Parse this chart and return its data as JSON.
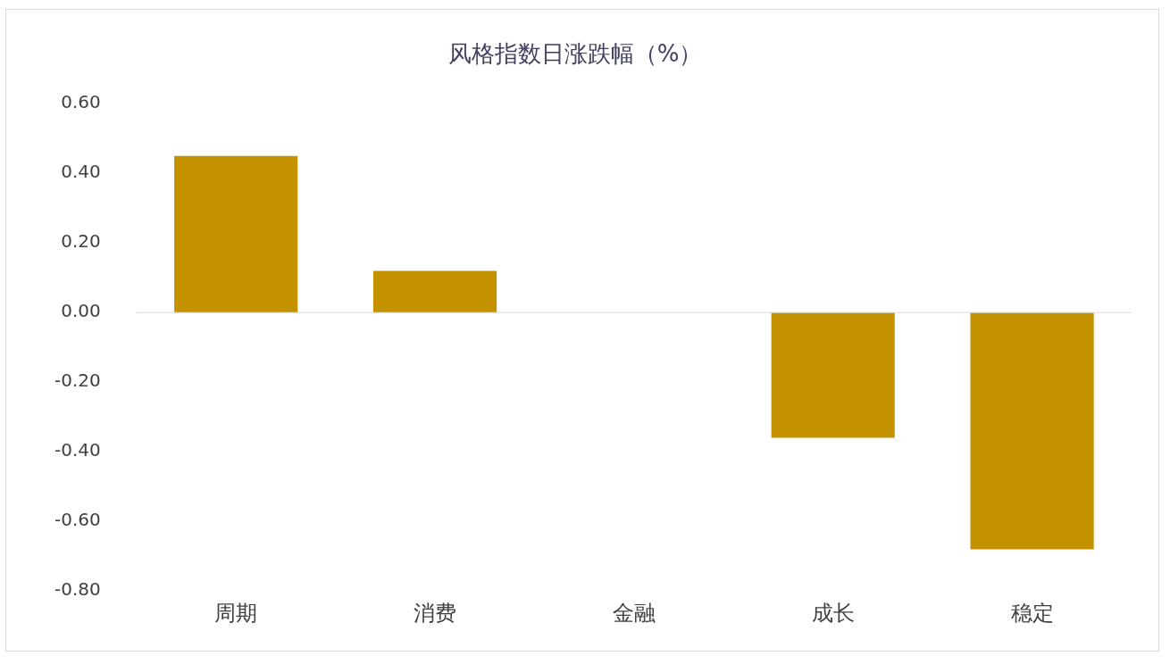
{
  "chart_data": {
    "type": "bar",
    "title": "风格指数日涨跌幅（%）",
    "categories": [
      "周期",
      "消费",
      "金融",
      "成长",
      "稳定"
    ],
    "values": [
      0.45,
      0.12,
      0.0,
      -0.36,
      -0.68
    ],
    "color": "#c49100",
    "ylim": [
      -0.8,
      0.6
    ],
    "yticks": [
      {
        "value": -0.8,
        "label": "-0.80"
      },
      {
        "value": -0.6,
        "label": "-0.60"
      },
      {
        "value": -0.4,
        "label": "-0.40"
      },
      {
        "value": -0.2,
        "label": "-0.20"
      },
      {
        "value": 0,
        "label": "0.00"
      },
      {
        "value": 0.2,
        "label": "0.20"
      },
      {
        "value": 0.4,
        "label": "0.40"
      },
      {
        "value": 0.6,
        "label": "0.60"
      }
    ],
    "ref_lines": [
      {
        "axis": "y",
        "value": 0,
        "color": "#d9d9d9"
      }
    ],
    "grid": false,
    "legend": false
  }
}
